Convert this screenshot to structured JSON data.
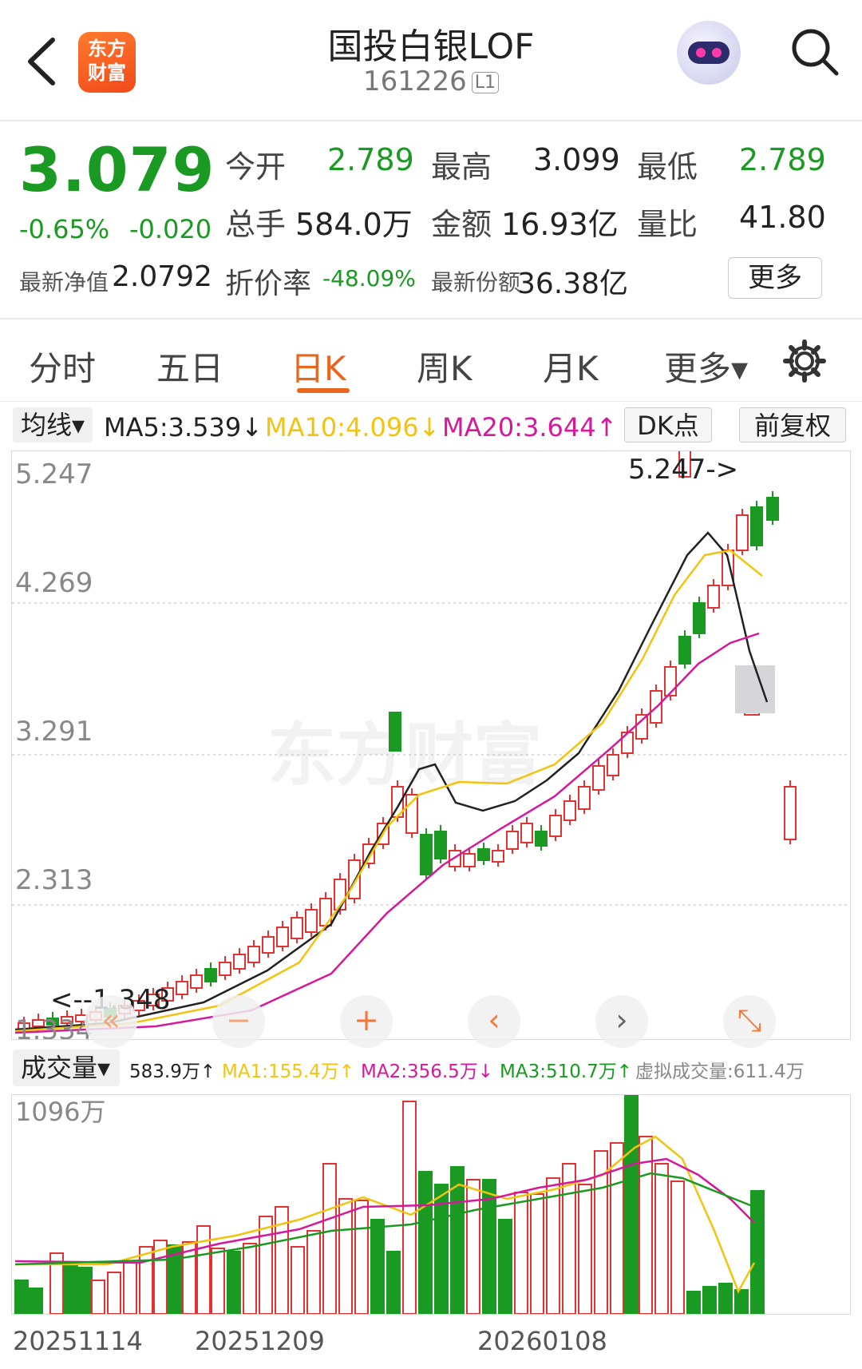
{
  "header": {
    "brand_logo_text": "东方财富",
    "title": "国投白银LOF",
    "code": "161226",
    "code_tag": "L1"
  },
  "quote": {
    "price": "3.079",
    "change_pct": "-0.65%",
    "change": "-0.020",
    "open_label": "今开",
    "open": "2.789",
    "high_label": "最高",
    "high": "3.099",
    "low_label": "最低",
    "low": "2.789",
    "volume_label": "总手",
    "volume": "584.0万",
    "amount_label": "金额",
    "amount": "16.93亿",
    "ratio_label": "量比",
    "ratio": "41.80",
    "nav_label": "最新净值",
    "nav": "2.0792",
    "discount_label": "折价率",
    "discount": "-48.09%",
    "shares_label": "最新份额",
    "shares": "36.38亿",
    "more_label": "更多"
  },
  "tabs": [
    {
      "label": "分时"
    },
    {
      "label": "五日"
    },
    {
      "label": "日K"
    },
    {
      "label": "周K"
    },
    {
      "label": "月K"
    },
    {
      "label": "更多▾"
    }
  ],
  "indicators": {
    "ma_selector": "均线▾",
    "ma5": "MA5:3.539↓",
    "ma10": "MA10:4.096↓",
    "ma20": "MA20:3.644↑",
    "dk_label": "DK点",
    "fq_label": "前复权",
    "colors": {
      "ma5": "#222222",
      "ma10": "#f2c40f",
      "ma20": "#d4199a",
      "up": "#e03434",
      "down": "#1a9a22"
    }
  },
  "kline": {
    "axis_labels": [
      "5.247",
      "4.269",
      "3.291",
      "2.313",
      "1.334"
    ],
    "max_label": "5.247->",
    "min_label": "<--1.348",
    "watermark": "东方财富"
  },
  "chart_controls": [
    {
      "icon": "double-left-icon",
      "glyph": "«"
    },
    {
      "icon": "zoom-out-icon",
      "glyph": "−"
    },
    {
      "icon": "zoom-in-icon",
      "glyph": "+"
    },
    {
      "icon": "prev-icon",
      "glyph": "‹"
    },
    {
      "icon": "next-icon",
      "glyph": "›"
    },
    {
      "icon": "expand-icon",
      "glyph": "⤡"
    }
  ],
  "volume": {
    "selector": "成交量▾",
    "current": "583.9万↑",
    "ma1": "MA1:155.4万↑",
    "ma2": "MA2:356.5万↓",
    "ma3": "MA3:510.7万↑",
    "virtual": "虚拟成交量:611.4万",
    "axis_top": "1096万",
    "colors": {
      "ma1": "#f2c40f",
      "ma2": "#d4199a",
      "ma3": "#1a9a22"
    }
  },
  "dates": [
    "20251114",
    "20251209",
    "20260108"
  ]
}
